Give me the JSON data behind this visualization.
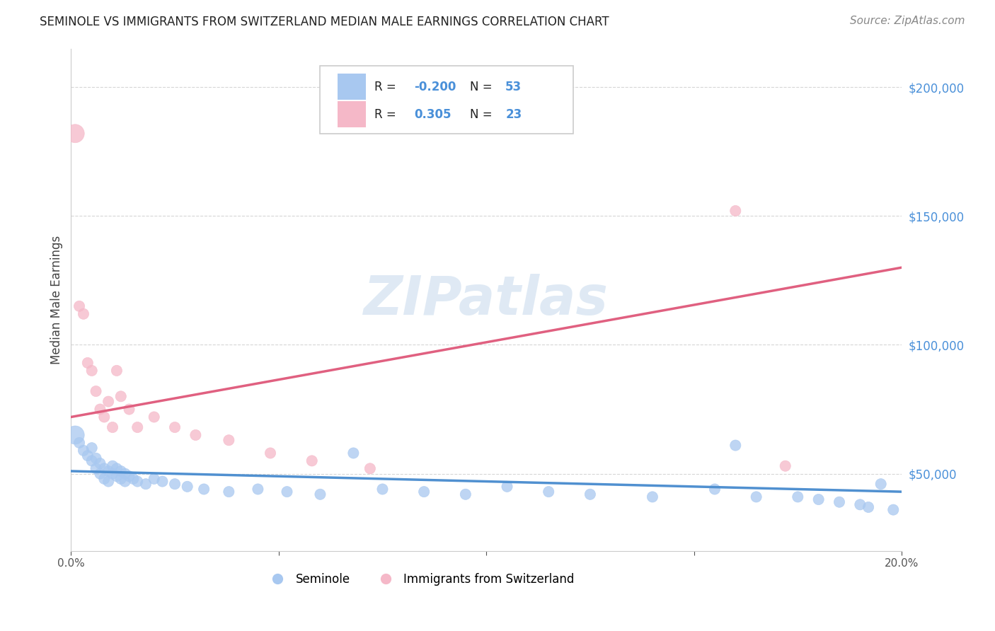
{
  "title": "SEMINOLE VS IMMIGRANTS FROM SWITZERLAND MEDIAN MALE EARNINGS CORRELATION CHART",
  "source": "Source: ZipAtlas.com",
  "ylabel": "Median Male Earnings",
  "watermark": "ZIPatlas",
  "blue_R": "-0.200",
  "blue_N": "53",
  "pink_R": "0.305",
  "pink_N": "23",
  "blue_color": "#a8c8f0",
  "pink_color": "#f5b8c8",
  "blue_line_color": "#5090d0",
  "pink_line_color": "#e06080",
  "title_color": "#222222",
  "source_color": "#888888",
  "axis_label_color": "#444444",
  "ytick_color": "#4a90d9",
  "xlim": [
    0.0,
    0.2
  ],
  "ylim": [
    20000,
    215000
  ],
  "yticks": [
    50000,
    100000,
    150000,
    200000
  ],
  "ytick_labels": [
    "$50,000",
    "$100,000",
    "$150,000",
    "$200,000"
  ],
  "xticks": [
    0.0,
    0.05,
    0.1,
    0.15,
    0.2
  ],
  "xtick_labels": [
    "0.0%",
    "",
    "",
    "",
    "20.0%"
  ],
  "blue_x": [
    0.001,
    0.002,
    0.003,
    0.004,
    0.005,
    0.005,
    0.006,
    0.006,
    0.007,
    0.007,
    0.008,
    0.008,
    0.009,
    0.009,
    0.01,
    0.01,
    0.011,
    0.011,
    0.012,
    0.012,
    0.013,
    0.013,
    0.014,
    0.015,
    0.016,
    0.018,
    0.02,
    0.022,
    0.025,
    0.028,
    0.032,
    0.038,
    0.045,
    0.052,
    0.06,
    0.068,
    0.075,
    0.085,
    0.095,
    0.105,
    0.115,
    0.125,
    0.14,
    0.155,
    0.16,
    0.165,
    0.175,
    0.18,
    0.185,
    0.19,
    0.192,
    0.195,
    0.198
  ],
  "blue_y": [
    65000,
    62000,
    59000,
    57000,
    55000,
    60000,
    52000,
    56000,
    50000,
    54000,
    48000,
    52000,
    47000,
    51000,
    50000,
    53000,
    49000,
    52000,
    48000,
    51000,
    50000,
    47000,
    49000,
    48000,
    47000,
    46000,
    48000,
    47000,
    46000,
    45000,
    44000,
    43000,
    44000,
    43000,
    42000,
    58000,
    44000,
    43000,
    42000,
    45000,
    43000,
    42000,
    41000,
    44000,
    61000,
    41000,
    41000,
    40000,
    39000,
    38000,
    37000,
    46000,
    36000
  ],
  "blue_size": 120,
  "blue_large_size": 350,
  "pink_x": [
    0.001,
    0.002,
    0.003,
    0.004,
    0.005,
    0.006,
    0.007,
    0.008,
    0.009,
    0.01,
    0.011,
    0.012,
    0.014,
    0.016,
    0.02,
    0.025,
    0.03,
    0.038,
    0.048,
    0.058,
    0.072,
    0.16,
    0.172
  ],
  "pink_y": [
    182000,
    115000,
    112000,
    93000,
    90000,
    82000,
    75000,
    72000,
    78000,
    68000,
    90000,
    80000,
    75000,
    68000,
    72000,
    68000,
    65000,
    63000,
    58000,
    55000,
    52000,
    152000,
    53000
  ],
  "pink_size": 120,
  "blue_line_x0": 0.0,
  "blue_line_y0": 51000,
  "blue_line_x1": 0.2,
  "blue_line_y1": 43000,
  "pink_line_x0": 0.0,
  "pink_line_y0": 72000,
  "pink_line_x1": 0.2,
  "pink_line_y1": 130000,
  "figsize": [
    14.06,
    8.92
  ],
  "dpi": 100
}
